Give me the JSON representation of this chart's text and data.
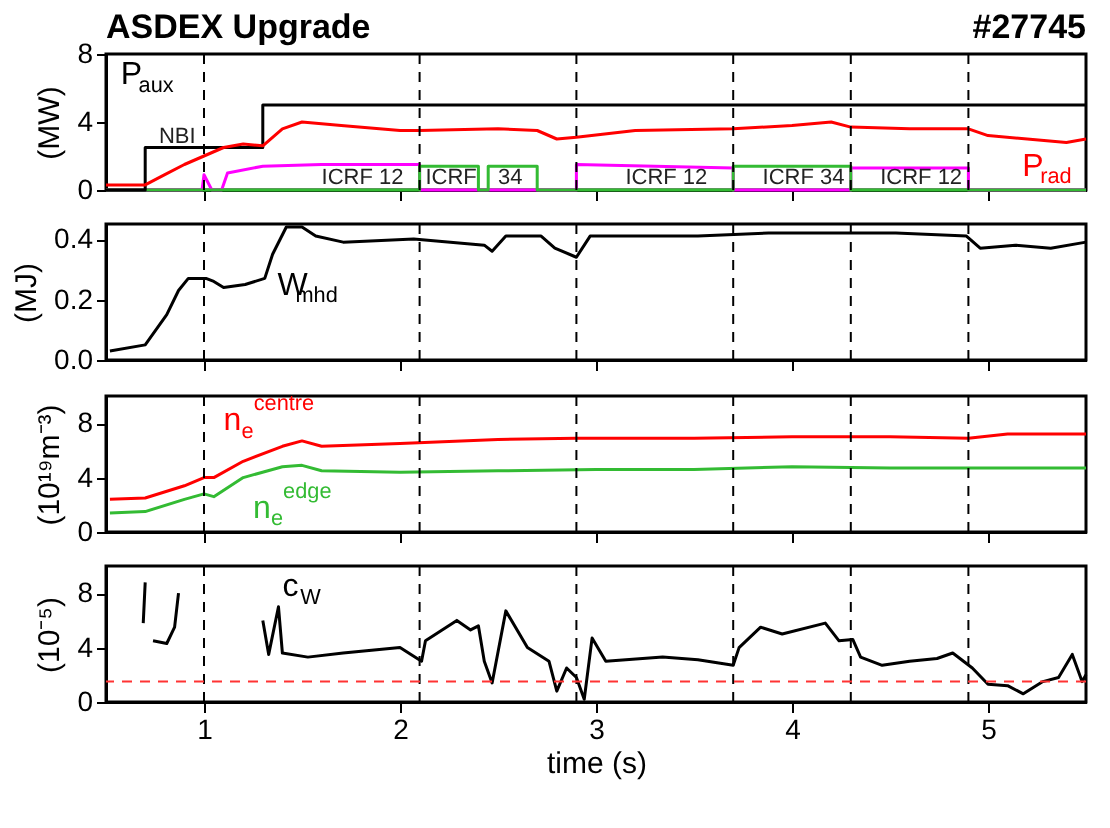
{
  "chart_data": [
    {
      "type": "line",
      "title": "ASDEX Upgrade",
      "ylabel": "(MW)",
      "xlim": [
        0.5,
        5.5
      ],
      "xticks": [
        1,
        2,
        3,
        4,
        5
      ],
      "ylim": [
        0,
        8
      ],
      "yticks": [
        0,
        4,
        8
      ],
      "tick_labels": "y",
      "grid": false,
      "annotations": [
        "#27745",
        {
          "text": "NBI",
          "x": 0.77,
          "y": 3.1
        },
        {
          "text": "ICRF 12",
          "x": 1.6,
          "y": 0.7
        },
        {
          "text": "ICRF",
          "x": 2.13,
          "y": 0.7
        },
        {
          "text": "34",
          "x": 2.5,
          "y": 0.7
        },
        {
          "text": "ICRF 12",
          "x": 3.15,
          "y": 0.7
        },
        {
          "text": "ICRF 34",
          "x": 3.85,
          "y": 0.7
        },
        {
          "text": "ICRF 12",
          "x": 4.45,
          "y": 0.7
        }
      ],
      "ref_lines": [
        {
          "axis": "x",
          "value": 1.0,
          "color": "#000000",
          "line_style": "dashed"
        },
        {
          "axis": "x",
          "value": 2.1,
          "color": "#000000",
          "line_style": "dashed"
        },
        {
          "axis": "x",
          "value": 2.9,
          "color": "#000000",
          "line_style": "dashed"
        },
        {
          "axis": "x",
          "value": 3.7,
          "color": "#000000",
          "line_style": "dashed"
        },
        {
          "axis": "x",
          "value": 4.3,
          "color": "#000000",
          "line_style": "dashed"
        },
        {
          "axis": "x",
          "value": 4.9,
          "color": "#000000",
          "line_style": "dashed"
        }
      ],
      "series": [
        {
          "color": "#ff00ff",
          "x": [
            0.5,
            0.99,
            1.0,
            1.04,
            1.09,
            1.12,
            1.3,
            1.6,
            2.1,
            2.1,
            2.9,
            2.9,
            3.7,
            3.7,
            4.3,
            4.3,
            4.9,
            4.9,
            5.5
          ],
          "values": [
            0,
            0,
            0.9,
            0,
            0,
            1.0,
            1.4,
            1.5,
            1.5,
            0,
            0,
            1.5,
            1.3,
            0,
            0,
            1.3,
            1.3,
            0,
            0
          ]
        },
        {
          "color": "#33bb33",
          "x": [
            0.5,
            2.1,
            2.1,
            2.4,
            2.4,
            2.45,
            2.45,
            2.7,
            2.7,
            3.7,
            3.7,
            4.3,
            4.3,
            5.5
          ],
          "values": [
            0,
            0,
            1.4,
            1.4,
            0,
            0,
            1.4,
            1.4,
            0,
            0,
            1.4,
            1.4,
            0,
            0
          ]
        },
        {
          "type": "step",
          "name": "P$_{aux}$",
          "color": "#000000",
          "x": [
            0.5,
            0.7,
            1.3,
            5.5
          ],
          "values": [
            0,
            2.5,
            5,
            5
          ]
        },
        {
          "name": "P$_{rad}$",
          "color": "#ff0000",
          "x": [
            0.5,
            0.7,
            0.8,
            0.9,
            1.0,
            1.1,
            1.2,
            1.3,
            1.4,
            1.5,
            1.7,
            2.0,
            2.1,
            2.5,
            2.7,
            2.8,
            2.9,
            3.2,
            3.7,
            4.0,
            4.2,
            4.3,
            4.6,
            4.9,
            5.0,
            5.2,
            5.4,
            5.5
          ],
          "values": [
            0.3,
            0.3,
            0.9,
            1.5,
            2.0,
            2.5,
            2.7,
            2.6,
            3.6,
            4.0,
            3.8,
            3.5,
            3.5,
            3.6,
            3.5,
            3.0,
            3.1,
            3.5,
            3.6,
            3.8,
            4.0,
            3.7,
            3.6,
            3.6,
            3.2,
            3.0,
            2.8,
            3.0
          ]
        }
      ]
    },
    {
      "type": "line",
      "ylabel": "(MJ)",
      "xlim": [
        0.5,
        5.5
      ],
      "xticks": [
        1,
        2,
        3,
        4,
        5
      ],
      "ylim": [
        0,
        0.45
      ],
      "yticks": [
        {
          "value": 0,
          "label": "0.0"
        },
        {
          "value": 0.2,
          "label": "0.2"
        },
        {
          "value": 0.4,
          "label": "0.4"
        }
      ],
      "tick_labels": "y",
      "grid": false,
      "ref_lines": [
        {
          "axis": "x",
          "value": 1.0,
          "color": "#000000",
          "line_style": "dashed"
        },
        {
          "axis": "x",
          "value": 2.1,
          "color": "#000000",
          "line_style": "dashed"
        },
        {
          "axis": "x",
          "value": 2.9,
          "color": "#000000",
          "line_style": "dashed"
        },
        {
          "axis": "x",
          "value": 3.7,
          "color": "#000000",
          "line_style": "dashed"
        },
        {
          "axis": "x",
          "value": 4.3,
          "color": "#000000",
          "line_style": "dashed"
        },
        {
          "axis": "x",
          "value": 4.9,
          "color": "#000000",
          "line_style": "dashed"
        }
      ],
      "series": [
        {
          "name": "W$_{mhd}$",
          "color": "#000000",
          "x": [
            0.52,
            0.7,
            0.81,
            0.87,
            0.92,
            1.01,
            1.05,
            1.1,
            1.21,
            1.31,
            1.35,
            1.42,
            1.5,
            1.57,
            1.71,
            2.07,
            2.43,
            2.47,
            2.54,
            2.72,
            2.79,
            2.9,
            2.97,
            3.15,
            3.52,
            3.88,
            4.24,
            4.53,
            4.89,
            4.96,
            5.14,
            5.32,
            5.5
          ],
          "values": [
            0.03,
            0.05,
            0.15,
            0.23,
            0.27,
            0.27,
            0.26,
            0.24,
            0.25,
            0.27,
            0.35,
            0.44,
            0.44,
            0.41,
            0.39,
            0.4,
            0.38,
            0.36,
            0.41,
            0.41,
            0.37,
            0.34,
            0.41,
            0.41,
            0.41,
            0.42,
            0.42,
            0.42,
            0.41,
            0.37,
            0.38,
            0.37,
            0.39
          ]
        }
      ]
    },
    {
      "type": "line",
      "ylabel": "(10¹⁹m⁻³)",
      "xlim": [
        0.5,
        5.5
      ],
      "xticks": [
        1,
        2,
        3,
        4,
        5
      ],
      "ylim": [
        0,
        10
      ],
      "yticks": [
        0,
        4,
        8
      ],
      "tick_labels": "y",
      "grid": false,
      "ref_lines": [
        {
          "axis": "x",
          "value": 1.0,
          "color": "#000000",
          "line_style": "dashed"
        },
        {
          "axis": "x",
          "value": 2.1,
          "color": "#000000",
          "line_style": "dashed"
        },
        {
          "axis": "x",
          "value": 2.9,
          "color": "#000000",
          "line_style": "dashed"
        },
        {
          "axis": "x",
          "value": 3.7,
          "color": "#000000",
          "line_style": "dashed"
        },
        {
          "axis": "x",
          "value": 4.3,
          "color": "#000000",
          "line_style": "dashed"
        },
        {
          "axis": "x",
          "value": 4.9,
          "color": "#000000",
          "line_style": "dashed"
        }
      ],
      "series": [
        {
          "name": "n$_{e}$$^{centre}$",
          "color": "#ff0000",
          "x": [
            0.52,
            0.7,
            0.9,
            1.0,
            1.05,
            1.2,
            1.4,
            1.5,
            1.6,
            2.0,
            2.5,
            2.9,
            3.5,
            4.0,
            4.5,
            4.9,
            5.1,
            5.5
          ],
          "values": [
            2.4,
            2.5,
            3.4,
            4.0,
            4.0,
            5.2,
            6.3,
            6.7,
            6.3,
            6.5,
            6.8,
            6.9,
            6.9,
            7.0,
            7.0,
            6.9,
            7.2,
            7.2
          ]
        },
        {
          "name": "n$_{e}$$^{edge}$",
          "color": "#33bb33",
          "x": [
            0.52,
            0.7,
            0.9,
            1.0,
            1.05,
            1.2,
            1.4,
            1.5,
            1.6,
            2.0,
            2.5,
            3.0,
            3.5,
            4.0,
            4.5,
            5.0,
            5.5
          ],
          "values": [
            1.4,
            1.5,
            2.4,
            2.8,
            2.6,
            4.0,
            4.8,
            4.9,
            4.5,
            4.4,
            4.5,
            4.6,
            4.6,
            4.8,
            4.7,
            4.7,
            4.7
          ]
        }
      ]
    },
    {
      "type": "line",
      "ylabel": "(10⁻⁵)",
      "xlabel": "time (s)",
      "xlim": [
        0.5,
        5.5
      ],
      "xticks": [
        1,
        2,
        3,
        4,
        5
      ],
      "ylim": [
        0,
        10
      ],
      "yticks": [
        0,
        4,
        8
      ],
      "grid": false,
      "ref_lines": [
        {
          "axis": "x",
          "value": 1.0,
          "color": "#000000",
          "line_style": "dashed"
        },
        {
          "axis": "x",
          "value": 2.1,
          "color": "#000000",
          "line_style": "dashed"
        },
        {
          "axis": "x",
          "value": 2.9,
          "color": "#000000",
          "line_style": "dashed"
        },
        {
          "axis": "x",
          "value": 3.7,
          "color": "#000000",
          "line_style": "dashed"
        },
        {
          "axis": "x",
          "value": 4.3,
          "color": "#000000",
          "line_style": "dashed"
        },
        {
          "axis": "x",
          "value": 4.9,
          "color": "#000000",
          "line_style": "dashed"
        },
        {
          "axis": "y",
          "value": 1.5,
          "color": "#ff3333",
          "line_style": "dashed"
        }
      ],
      "series": [
        {
          "name": "c$_{W}$",
          "color": "#000000",
          "x": [
            0.69,
            0.7,
            0.72,
            0.74,
            0.81,
            0.85,
            0.87,
            0.88,
            1.3,
            1.33,
            1.38,
            1.4,
            1.53,
            1.71,
            2.0,
            2.11,
            2.13,
            2.29,
            2.36,
            2.4,
            2.43,
            2.47,
            2.54,
            2.65,
            2.76,
            2.8,
            2.85,
            2.9,
            2.94,
            2.98,
            3.05,
            3.34,
            3.52,
            3.7,
            3.73,
            3.84,
            3.95,
            4.17,
            4.24,
            4.31,
            4.35,
            4.46,
            4.6,
            4.74,
            4.82,
            4.92,
            5.0,
            5.1,
            5.18,
            5.28,
            5.36,
            5.43,
            5.48,
            5.5
          ],
          "values": [
            5.8,
            8.8,
            null,
            4.5,
            4.3,
            5.5,
            8,
            null,
            6,
            3.5,
            7,
            3.6,
            3.3,
            3.6,
            4,
            3,
            4.5,
            6,
            5.3,
            5.6,
            3.0,
            1.4,
            6.7,
            4.0,
            3.0,
            0.8,
            2.5,
            1.8,
            0.2,
            4.7,
            3.0,
            3.3,
            3.1,
            2.7,
            4.0,
            5.5,
            5.0,
            5.8,
            4.5,
            4.6,
            3.3,
            2.7,
            3.0,
            3.2,
            3.6,
            2.5,
            1.3,
            1.2,
            0.6,
            1.5,
            1.8,
            3.5,
            1.5,
            2.0
          ]
        }
      ]
    }
  ]
}
